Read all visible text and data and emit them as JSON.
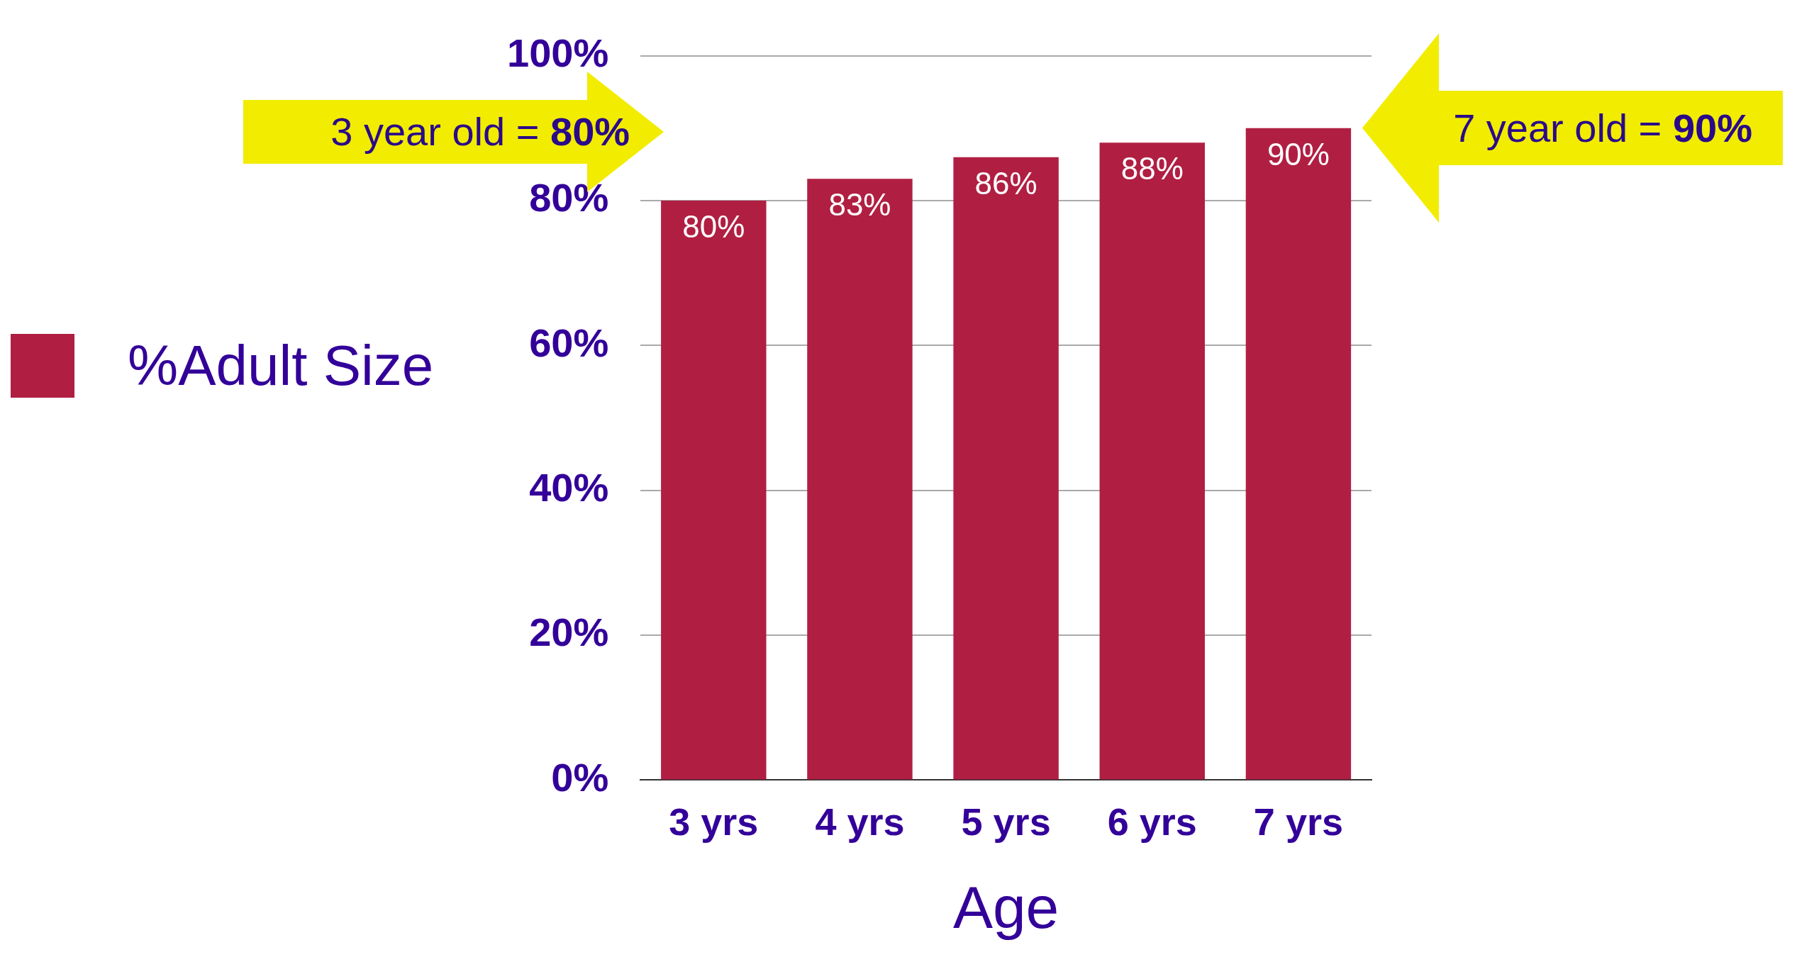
{
  "chart_data": {
    "type": "bar",
    "xlabel": "Age",
    "categories": [
      "3 yrs",
      "4 yrs",
      "5 yrs",
      "6 yrs",
      "7 yrs"
    ],
    "series": [
      {
        "name": "%Adult Size",
        "color": "#b01f42",
        "values": [
          80,
          83,
          86,
          88,
          90
        ]
      }
    ],
    "ylim": [
      0,
      100
    ],
    "yticks": [
      {
        "value": 0,
        "label": "0%"
      },
      {
        "value": 20,
        "label": "20%"
      },
      {
        "value": 40,
        "label": "40%"
      },
      {
        "value": 60,
        "label": "60%"
      },
      {
        "value": 80,
        "label": "80%"
      },
      {
        "value": 100,
        "label": "100%"
      }
    ],
    "grid": "y",
    "legend": "left",
    "value_labels": [
      "80%",
      "83%",
      "86%",
      "88%",
      "90%"
    ],
    "annotations": [
      "3 year old = 80%",
      "7 year old = 90%"
    ]
  }
}
